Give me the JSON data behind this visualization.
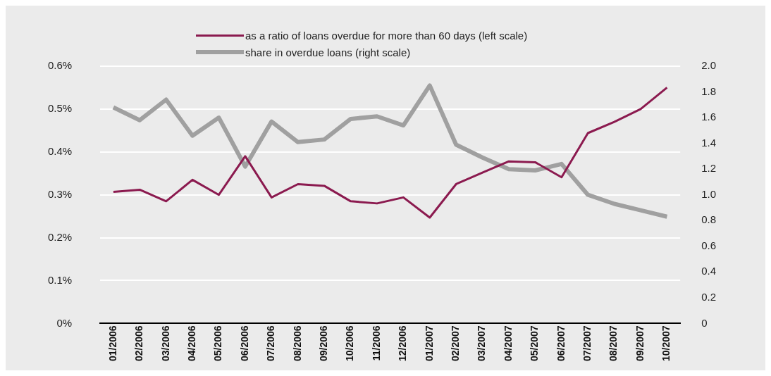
{
  "chart_data": {
    "type": "line",
    "categories": [
      "01/2006",
      "02/2006",
      "03/2006",
      "04/2006",
      "05/2006",
      "06/2006",
      "07/2006",
      "08/2006",
      "09/2006",
      "10/2006",
      "11/2006",
      "12/2006",
      "01/2007",
      "02/2007",
      "03/2007",
      "04/2007",
      "05/2007",
      "06/2007",
      "07/2007",
      "08/2007",
      "09/2007",
      "10/2007"
    ],
    "series": [
      {
        "name": "as a ratio of loans overdue for more than 60 days (left scale)",
        "color": "#8b1a4f",
        "values": [
          0.307,
          0.312,
          0.285,
          0.335,
          0.3,
          0.39,
          0.294,
          0.325,
          0.321,
          0.285,
          0.28,
          0.294,
          0.247,
          0.325,
          0.352,
          0.378,
          0.376,
          0.341,
          0.444,
          0.47,
          0.5,
          0.55
        ]
      },
      {
        "name": "share in overdue loans (right scale)",
        "color": "#a0a0a0",
        "axis": "y2",
        "values": [
          1.68,
          1.58,
          1.74,
          1.46,
          1.6,
          1.22,
          1.57,
          1.41,
          1.43,
          1.59,
          1.61,
          1.54,
          1.85,
          1.39,
          1.29,
          1.2,
          1.19,
          1.24,
          1.0,
          0.93,
          0.88,
          0.83
        ]
      }
    ],
    "ylim": [
      0,
      0.6
    ],
    "yticks": [
      {
        "value": 0,
        "label": "0%"
      },
      {
        "value": 0.1,
        "label": "0.1%"
      },
      {
        "value": 0.2,
        "label": "0.2%"
      },
      {
        "value": 0.3,
        "label": "0.3%"
      },
      {
        "value": 0.4,
        "label": "0.4%"
      },
      {
        "value": 0.5,
        "label": "0.5%"
      },
      {
        "value": 0.6,
        "label": "0.6%"
      }
    ],
    "y2lim": [
      0,
      2
    ],
    "y2ticks": [
      {
        "value": 0,
        "label": "0"
      },
      {
        "value": 0.2,
        "label": "0.2"
      },
      {
        "value": 0.4,
        "label": "0.4"
      },
      {
        "value": 0.6,
        "label": "0.6"
      },
      {
        "value": 0.8,
        "label": "0.8"
      },
      {
        "value": 1,
        "label": "1.0"
      },
      {
        "value": 1.2,
        "label": "1.2"
      },
      {
        "value": 1.4,
        "label": "1.4"
      },
      {
        "value": 1.6,
        "label": "1.6"
      },
      {
        "value": 1.8,
        "label": "1.8"
      },
      {
        "value": 2,
        "label": "2.0"
      }
    ],
    "grid": "y",
    "legend": "top",
    "marker": "none",
    "line_style": "solid"
  }
}
